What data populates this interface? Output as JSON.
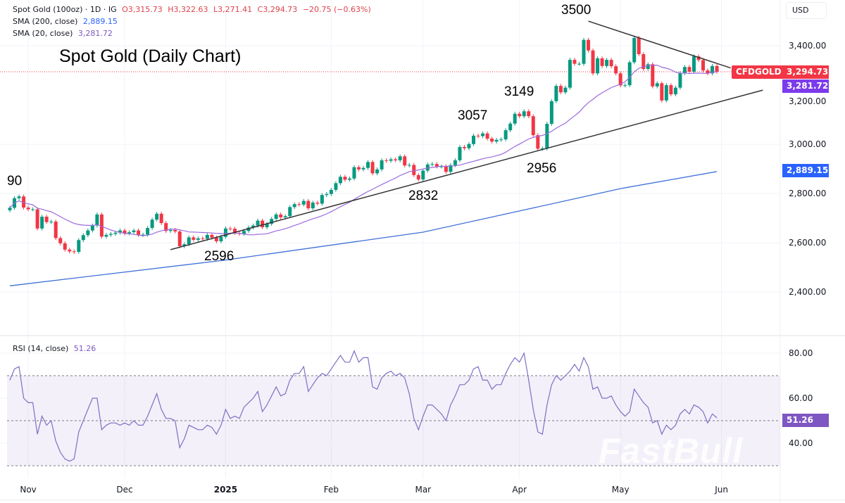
{
  "legend": {
    "symbol": "Spot Gold (100oz) · 1D · IG",
    "open": "O3,315.73",
    "high": "H3,322.63",
    "low": "L3,271.41",
    "close": "C3,294.73",
    "change": "−20.75 (−0.63%)",
    "sma200_label": "SMA (200, close)",
    "sma200_value": "2,889.15",
    "sma20_label": "SMA (20, close)",
    "sma20_value": "3,281.72",
    "rsi_label": "RSI (14, close)",
    "rsi_value": "51.26"
  },
  "currency": "USD",
  "watermark": "FastBull",
  "chart_data": {
    "type": "candlestick",
    "title": "Spot Gold (Daily Chart)",
    "colors": {
      "up": "#089981",
      "down": "#f23645",
      "sma20": "#9c6ade",
      "sma200": "#3d6fd8",
      "rsi": "#7e6fc4",
      "trendline": "#333333"
    },
    "price_axis": {
      "ticks": [
        "3,400.00",
        "3,000.00",
        "2,800.00",
        "2,600.00",
        "2,400.00"
      ],
      "tick_values": [
        3400,
        3000,
        2800,
        2600,
        2400
      ],
      "hidden_tick": "3,200.00"
    },
    "time_axis": {
      "labels": [
        "Nov",
        "Dec",
        "2025",
        "Feb",
        "Mar",
        "Apr",
        "May",
        "Jun"
      ],
      "dates": [
        "2024-11-01",
        "2024-12-02",
        "2025-01-01",
        "2025-02-03",
        "2025-03-03",
        "2025-04-01",
        "2025-05-01",
        "2025-06-02"
      ]
    },
    "price_tags": {
      "symbol": "CFDGOLD",
      "last": "3,294.73",
      "sma20": "3,281.72",
      "sma200": "2,889.15"
    },
    "weeks": [
      {
        "week": "2024-10-28",
        "closes": [
          2742,
          2781,
          2788,
          2743,
          2736
        ],
        "rsi": [
          68,
          73,
          74,
          60,
          58
        ]
      },
      {
        "week": "2024-11-04",
        "closes": [
          2736,
          2658,
          2706,
          2684,
          2686
        ],
        "rsi": [
          58,
          44,
          52,
          48,
          50
        ]
      },
      {
        "week": "2024-11-11",
        "closes": [
          2619,
          2598,
          2572,
          2565,
          2563
        ],
        "rsi": [
          41,
          36,
          33,
          32,
          33
        ]
      },
      {
        "week": "2024-11-18",
        "closes": [
          2611,
          2631,
          2650,
          2670,
          2715
        ],
        "rsi": [
          45,
          50,
          55,
          60,
          60
        ]
      },
      {
        "week": "2024-11-25",
        "closes": [
          2625,
          2632,
          2636,
          2641,
          2650
        ],
        "rsi": [
          46,
          48,
          49,
          49,
          48
        ]
      },
      {
        "week": "2024-12-02",
        "closes": [
          2638,
          2643,
          2650,
          2632,
          2633
        ],
        "rsi": [
          49,
          48,
          50,
          48,
          48
        ]
      },
      {
        "week": "2024-12-09",
        "closes": [
          2660,
          2694,
          2718,
          2680,
          2648
        ],
        "rsi": [
          52,
          57,
          62,
          55,
          51
        ]
      },
      {
        "week": "2024-12-16",
        "closes": [
          2652,
          2646,
          2586,
          2594,
          2622
        ],
        "rsi": [
          51,
          50,
          38,
          42,
          48
        ]
      },
      {
        "week": "2024-12-23",
        "closes": [
          2612,
          2618,
          2616,
          2632,
          2621
        ],
        "rsi": [
          47,
          46,
          46,
          48,
          47
        ]
      },
      {
        "week": "2024-12-30",
        "closes": [
          2606,
          2624,
          2658,
          2657,
          2640
        ],
        "rsi": [
          44,
          48,
          55,
          51,
          52
        ]
      },
      {
        "week": "2025-01-06",
        "closes": [
          2636,
          2648,
          2662,
          2670,
          2690
        ],
        "rsi": [
          51,
          56,
          58,
          60,
          63
        ]
      },
      {
        "week": "2025-01-13",
        "closes": [
          2663,
          2677,
          2697,
          2715,
          2703
        ],
        "rsi": [
          54,
          57,
          61,
          65,
          61
        ]
      },
      {
        "week": "2025-01-20",
        "closes": [
          2708,
          2745,
          2757,
          2755,
          2770
        ],
        "rsi": [
          62,
          68,
          71,
          71,
          74
        ]
      },
      {
        "week": "2025-01-27",
        "closes": [
          2740,
          2763,
          2759,
          2794,
          2798
        ],
        "rsi": [
          63,
          66,
          69,
          71,
          70
        ]
      },
      {
        "week": "2025-02-03",
        "closes": [
          2815,
          2842,
          2868,
          2856,
          2861
        ],
        "rsi": [
          73,
          76,
          79,
          76,
          76
        ]
      },
      {
        "week": "2025-02-10",
        "closes": [
          2907,
          2898,
          2904,
          2928,
          2882
        ],
        "rsi": [
          81,
          76,
          78,
          78,
          65
        ]
      },
      {
        "week": "2025-02-17",
        "closes": [
          2898,
          2935,
          2933,
          2939,
          2935
        ],
        "rsi": [
          64,
          69,
          71,
          72,
          70
        ]
      },
      {
        "week": "2025-02-24",
        "closes": [
          2951,
          2914,
          2916,
          2875,
          2857
        ],
        "rsi": [
          71,
          69,
          62,
          51,
          46
        ]
      },
      {
        "week": "2025-03-03",
        "closes": [
          2893,
          2918,
          2920,
          2910,
          2910
        ],
        "rsi": [
          52,
          57,
          57,
          55,
          53
        ]
      },
      {
        "week": "2025-03-10",
        "closes": [
          2888,
          2915,
          2935,
          2989,
          2984
        ],
        "rsi": [
          50,
          57,
          61,
          66,
          66
        ]
      },
      {
        "week": "2025-03-17",
        "closes": [
          3001,
          3035,
          3033,
          3044,
          3023
        ],
        "rsi": [
          68,
          73,
          74,
          68,
          68
        ]
      },
      {
        "week": "2025-03-24",
        "closes": [
          3011,
          3018,
          3020,
          3057,
          3084
        ],
        "rsi": [
          64,
          66,
          66,
          71,
          75
        ]
      },
      {
        "week": "2025-03-31",
        "closes": [
          3124,
          3114,
          3134,
          3114,
          3037
        ],
        "rsi": [
          78,
          76,
          80,
          68,
          55
        ]
      },
      {
        "week": "2025-04-07",
        "closes": [
          2982,
          2983,
          3083,
          3175,
          3237
        ],
        "rsi": [
          45,
          44,
          57,
          66,
          70
        ]
      },
      {
        "week": "2025-04-14",
        "closes": [
          3211,
          3230,
          3343,
          3327,
          3327
        ],
        "rsi": [
          68,
          70,
          72,
          75,
          72
        ]
      },
      {
        "week": "2025-04-21",
        "closes": [
          3424,
          3381,
          3288,
          3349,
          3318
        ],
        "rsi": [
          78,
          74,
          64,
          65,
          60
        ]
      },
      {
        "week": "2025-04-28",
        "closes": [
          3343,
          3317,
          3288,
          3239,
          3240
        ],
        "rsi": [
          60,
          61,
          57,
          54,
          52
        ]
      },
      {
        "week": "2025-05-05",
        "closes": [
          3333,
          3432,
          3366,
          3306,
          3325
        ],
        "rsi": [
          54,
          64,
          61,
          58,
          56
        ]
      },
      {
        "week": "2025-05-12",
        "closes": [
          3235,
          3248,
          3178,
          3240,
          3203
        ],
        "rsi": [
          49,
          50,
          44,
          48,
          46
        ]
      },
      {
        "week": "2025-05-19",
        "closes": [
          3230,
          3289,
          3314,
          3295,
          3357
        ],
        "rsi": [
          48,
          53,
          55,
          53,
          57
        ]
      },
      {
        "week": "2025-05-26",
        "closes": [
          3342,
          3300,
          3288,
          3318,
          3294.73
        ],
        "rsi": [
          56,
          54,
          49,
          53,
          51.26
        ]
      }
    ],
    "sma200": [
      {
        "date": "2024-10-28",
        "value": 2425
      },
      {
        "date": "2025-01-01",
        "value": 2530
      },
      {
        "date": "2025-03-03",
        "value": 2643
      },
      {
        "date": "2025-04-01",
        "value": 2729
      },
      {
        "date": "2025-05-01",
        "value": 2820
      },
      {
        "date": "2025-05-30",
        "value": 2889.15
      }
    ],
    "trendlines": [
      {
        "from": {
          "date": "2024-12-16",
          "price": 2572
        },
        "to": {
          "date": "2025-06-13",
          "price": 3220
        }
      },
      {
        "from": {
          "date": "2025-04-22",
          "price": 3500
        },
        "to": {
          "date": "2025-06-04",
          "price": 3310
        }
      }
    ],
    "annotations": [
      "90",
      "2596",
      "2832",
      "3057",
      "3149",
      "2956",
      "3500"
    ],
    "rsi_axis": {
      "ticks": [
        "80.00",
        "60.00",
        "40.00"
      ],
      "tick_values": [
        80,
        60,
        40
      ],
      "bands": [
        70,
        50,
        30
      ]
    }
  }
}
